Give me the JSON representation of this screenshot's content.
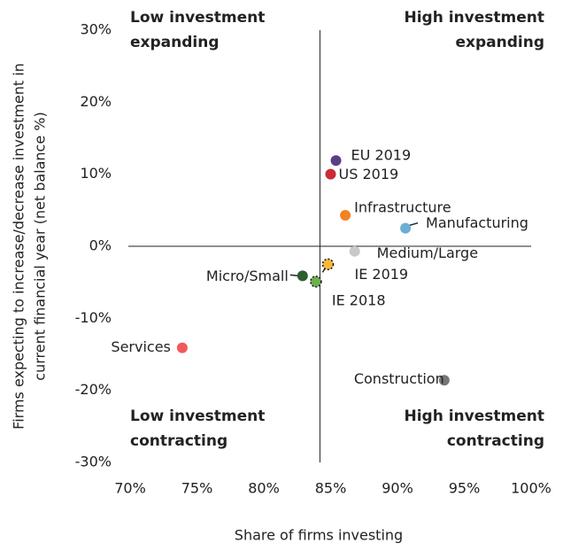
{
  "chart_data": {
    "type": "scatter",
    "xlabel": "Share of firms investing",
    "ylabel": [
      "Firms expecting to increase/decrease investment in",
      "current financial year  (net balance %)"
    ],
    "quadrants": {
      "top_left": [
        "Low investment",
        "expanding"
      ],
      "top_right": [
        "High investment",
        "expanding"
      ],
      "bottom_left": [
        "Low investment",
        "contracting"
      ],
      "bottom_right": [
        "High investment",
        "contracting"
      ]
    },
    "dividers": {
      "x": 84.2,
      "y": 0
    },
    "xlim": [
      70,
      100
    ],
    "xticks": [
      {
        "value": 70,
        "label": "70%"
      },
      {
        "value": 75,
        "label": "75%"
      },
      {
        "value": 80,
        "label": "80%"
      },
      {
        "value": 85,
        "label": "85%"
      },
      {
        "value": 90,
        "label": "90%"
      },
      {
        "value": 95,
        "label": "95%"
      },
      {
        "value": 100,
        "label": "100%"
      }
    ],
    "ylim": [
      -30,
      30
    ],
    "yticks": [
      {
        "value": 30,
        "label": "30%"
      },
      {
        "value": 20,
        "label": "20%"
      },
      {
        "value": 10,
        "label": "10%"
      },
      {
        "value": 0,
        "label": "0%"
      },
      {
        "value": -10,
        "label": "-10%"
      },
      {
        "value": -20,
        "label": "-20%"
      },
      {
        "value": -30,
        "label": "-30%"
      }
    ],
    "points": [
      {
        "name": "EU 2019",
        "x": 85.4,
        "y": 11.9,
        "color": "#5b3f86"
      },
      {
        "name": "US 2019",
        "x": 85.0,
        "y": 10.0,
        "color": "#cc2a36"
      },
      {
        "name": "Infrastructure",
        "x": 86.1,
        "y": 4.3,
        "color": "#f58220"
      },
      {
        "name": "Manufacturing",
        "x": 90.6,
        "y": 2.5,
        "color": "#6aaed6"
      },
      {
        "name": "Medium/Large",
        "x": 86.8,
        "y": -0.7,
        "color": "#c8c8c8"
      },
      {
        "name": "IE 2019",
        "x": 84.8,
        "y": -2.5,
        "color": "#f6b93b",
        "border": "dotted"
      },
      {
        "name": "Micro/Small",
        "x": 82.9,
        "y": -4.1,
        "color": "#2f5d2f"
      },
      {
        "name": "IE 2018",
        "x": 83.9,
        "y": -4.9,
        "color": "#6ab04c",
        "border": "dotted"
      },
      {
        "name": "Services",
        "x": 73.9,
        "y": -14.1,
        "color": "#f05a5a"
      },
      {
        "name": "Construction",
        "x": 93.5,
        "y": -18.6,
        "color": "#777777"
      }
    ]
  }
}
